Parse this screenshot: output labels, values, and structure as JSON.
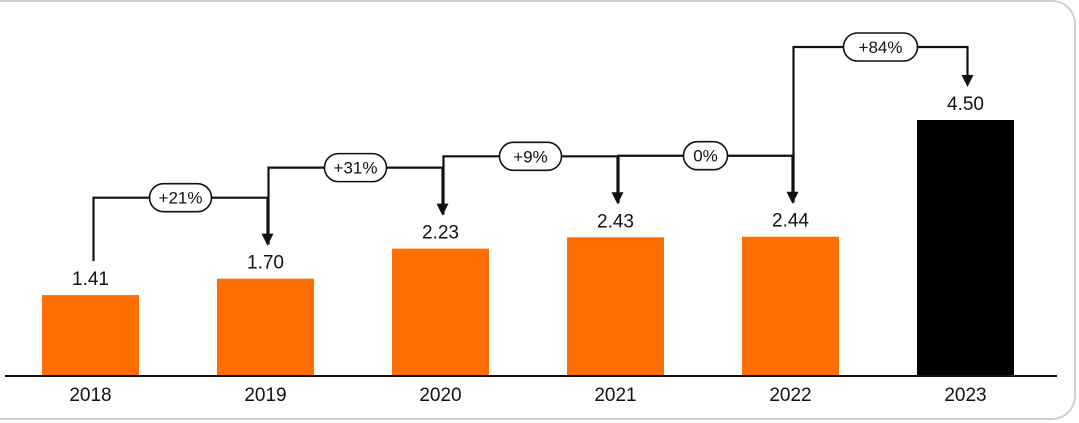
{
  "chart_data": {
    "type": "bar",
    "categories": [
      "2018",
      "2019",
      "2020",
      "2021",
      "2022",
      "2023"
    ],
    "values": [
      1.41,
      1.7,
      2.23,
      2.43,
      2.44,
      4.5
    ],
    "value_labels": [
      "1.41",
      "1.70",
      "2.23",
      "2.43",
      "2.44",
      "4.50"
    ],
    "changes": [
      "+21%",
      "+31%",
      "+9%",
      "0%",
      "+84%"
    ],
    "colors": [
      "#ff6e00",
      "#ff6e00",
      "#ff6e00",
      "#ff6e00",
      "#ff6e00",
      "#000000"
    ],
    "ylim": [
      0,
      4.5
    ],
    "grid": false,
    "title": "",
    "xlabel": "",
    "ylabel": ""
  }
}
